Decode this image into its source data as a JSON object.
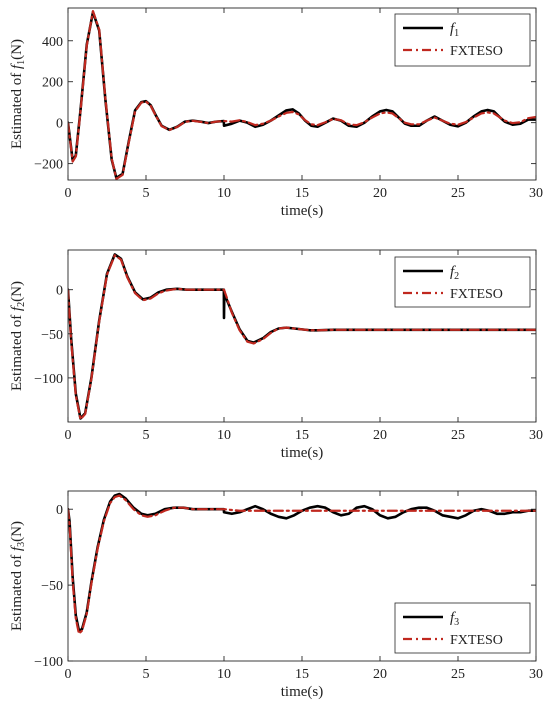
{
  "chart_data": [
    {
      "type": "line",
      "ylabel": "Estimated of f1(N)",
      "ylabel_main": "Estimated of ",
      "ylabel_var": "f",
      "ylabel_sub": "1",
      "ylabel_unit": "(N)",
      "xlabel": "time(s)",
      "xlim": [
        0,
        30
      ],
      "ylim": [
        -280,
        560
      ],
      "xticks": [
        0,
        5,
        10,
        15,
        20,
        25,
        30
      ],
      "yticks": [
        -200,
        0,
        200,
        400
      ],
      "grid": false,
      "legend_position": "top-right",
      "series": [
        {
          "name": "f1",
          "name_var": "f",
          "name_sub": "1",
          "color": "#000000",
          "style": "solid",
          "x": [
            0,
            0.3,
            0.5,
            0.8,
            1.2,
            1.6,
            2.0,
            2.4,
            2.8,
            3.1,
            3.5,
            3.9,
            4.3,
            4.7,
            5.0,
            5.3,
            5.6,
            6.0,
            6.5,
            7.0,
            7.5,
            8.0,
            8.5,
            9.0,
            9.5,
            9.99,
            10.0,
            10.5,
            11.0,
            11.5,
            12.0,
            12.5,
            13.0,
            13.5,
            14.0,
            14.4,
            14.8,
            15.2,
            15.6,
            16.0,
            16.5,
            17.0,
            17.5,
            18.0,
            18.5,
            19.0,
            19.5,
            20.0,
            20.4,
            20.8,
            21.2,
            21.6,
            22.0,
            22.5,
            23.0,
            23.5,
            24.0,
            24.5,
            25.0,
            25.5,
            26.0,
            26.5,
            26.9,
            27.3,
            27.7,
            28.0,
            28.5,
            29.0,
            29.5,
            30.0
          ],
          "y": [
            0,
            -185,
            -160,
            60,
            380,
            540,
            450,
            110,
            -180,
            -270,
            -250,
            -90,
            60,
            100,
            105,
            85,
            40,
            -15,
            -35,
            -20,
            5,
            10,
            5,
            -2,
            5,
            8,
            -15,
            -5,
            10,
            0,
            -20,
            -10,
            10,
            35,
            60,
            65,
            45,
            10,
            -15,
            -20,
            0,
            20,
            10,
            -15,
            -20,
            0,
            30,
            55,
            62,
            55,
            25,
            -5,
            -15,
            -15,
            10,
            30,
            10,
            -10,
            -18,
            0,
            30,
            55,
            62,
            55,
            25,
            5,
            -10,
            -5,
            15,
            15
          ]
        },
        {
          "name": "FXTESO",
          "color": "#c0281f",
          "style": "dashdot",
          "x": [
            0,
            0.3,
            0.5,
            0.8,
            1.2,
            1.6,
            2.0,
            2.4,
            2.8,
            3.1,
            3.5,
            3.9,
            4.3,
            4.7,
            5.0,
            5.3,
            5.6,
            6.0,
            6.5,
            7.0,
            7.5,
            8.0,
            8.5,
            9.0,
            9.5,
            10.0,
            10.5,
            11.0,
            11.5,
            12.0,
            12.5,
            13.0,
            13.5,
            14.0,
            14.4,
            14.8,
            15.2,
            15.6,
            16.0,
            16.5,
            17.0,
            17.5,
            18.0,
            18.5,
            19.0,
            19.5,
            20.0,
            20.4,
            20.8,
            21.2,
            21.6,
            22.0,
            22.5,
            23.0,
            23.5,
            24.0,
            24.5,
            25.0,
            25.5,
            26.0,
            26.5,
            26.9,
            27.3,
            27.7,
            28.0,
            28.5,
            29.0,
            29.5,
            30.0
          ],
          "y": [
            0,
            -190,
            -165,
            55,
            375,
            545,
            455,
            115,
            -175,
            -275,
            -255,
            -95,
            55,
            98,
            103,
            83,
            38,
            -17,
            -36,
            -21,
            4,
            9,
            4,
            -2,
            5,
            8,
            5,
            12,
            3,
            -12,
            -5,
            10,
            30,
            48,
            52,
            40,
            12,
            -8,
            -12,
            2,
            18,
            12,
            -8,
            -12,
            2,
            25,
            45,
            50,
            45,
            22,
            0,
            -8,
            -8,
            10,
            25,
            10,
            -5,
            -10,
            3,
            25,
            45,
            50,
            45,
            25,
            10,
            -2,
            2,
            22,
            28
          ]
        }
      ]
    },
    {
      "type": "line",
      "ylabel": "Estimated of f2(N)",
      "ylabel_main": "Estimated of ",
      "ylabel_var": "f",
      "ylabel_sub": "2",
      "ylabel_unit": "(N)",
      "xlabel": "time(s)",
      "xlim": [
        0,
        30
      ],
      "ylim": [
        -150,
        45
      ],
      "xticks": [
        0,
        5,
        10,
        15,
        20,
        25,
        30
      ],
      "yticks": [
        -100,
        -50,
        0
      ],
      "grid": false,
      "legend_position": "top-right",
      "series": [
        {
          "name": "f2",
          "name_var": "f",
          "name_sub": "2",
          "color": "#000000",
          "style": "solid",
          "x": [
            0,
            0.2,
            0.5,
            0.8,
            1.1,
            1.5,
            2.0,
            2.5,
            3.0,
            3.4,
            3.8,
            4.3,
            4.8,
            5.3,
            5.8,
            6.3,
            7.0,
            7.6,
            8.2,
            9.0,
            9.99,
            10.0,
            10.02,
            10.1,
            10.5,
            11.0,
            11.5,
            11.9,
            12.5,
            13.0,
            13.5,
            14.0,
            14.5,
            15.0,
            15.5,
            16.0,
            17.0,
            18.0,
            19.0,
            20.0,
            22.0,
            24.0,
            26.0,
            28.0,
            30.0
          ],
          "y": [
            0,
            -55,
            -118,
            -146,
            -140,
            -100,
            -35,
            18,
            40,
            35,
            15,
            -3,
            -11,
            -9,
            -3,
            0,
            1,
            0,
            0,
            0,
            0,
            -32,
            -2,
            -8,
            -25,
            -45,
            -58,
            -60,
            -55,
            -48,
            -44,
            -43,
            -44,
            -45,
            -46,
            -46,
            -45.5,
            -45.5,
            -45.5,
            -45.5,
            -45.5,
            -45.5,
            -45.5,
            -45.5,
            -45.5
          ]
        },
        {
          "name": "FXTESO",
          "color": "#c0281f",
          "style": "dashdot",
          "x": [
            0,
            0.2,
            0.5,
            0.8,
            1.1,
            1.5,
            2.0,
            2.5,
            3.0,
            3.4,
            3.8,
            4.3,
            4.8,
            5.3,
            5.8,
            6.3,
            7.0,
            7.6,
            8.2,
            9.0,
            10.0,
            10.2,
            10.5,
            11.0,
            11.5,
            11.9,
            12.5,
            13.0,
            13.5,
            14.0,
            14.5,
            15.0,
            15.5,
            16.0,
            17.0,
            18.0,
            19.0,
            20.0,
            22.0,
            24.0,
            26.0,
            28.0,
            30.0
          ],
          "y": [
            0,
            -58,
            -120,
            -147,
            -141,
            -101,
            -36,
            17,
            39,
            34,
            14,
            -4,
            -12,
            -10,
            -4,
            -1,
            1,
            0,
            0,
            0,
            0,
            -10,
            -26,
            -46,
            -59,
            -61,
            -56,
            -49,
            -44,
            -43,
            -44,
            -45,
            -46,
            -46,
            -45.5,
            -45.5,
            -45.5,
            -45.5,
            -45.5,
            -45.5,
            -45.5,
            -45.5,
            -45.5
          ]
        }
      ]
    },
    {
      "type": "line",
      "ylabel": "Estimated of f3(N)",
      "ylabel_main": "Estimated of ",
      "ylabel_var": "f",
      "ylabel_sub": "3",
      "ylabel_unit": "(N)",
      "xlabel": "time(s)",
      "xlim": [
        0,
        30
      ],
      "ylim": [
        -100,
        12
      ],
      "xticks": [
        0,
        5,
        10,
        15,
        20,
        25,
        30
      ],
      "yticks": [
        -100,
        -50,
        0
      ],
      "grid": false,
      "legend_position": "bottom-right",
      "series": [
        {
          "name": "f3",
          "name_var": "f",
          "name_sub": "3",
          "color": "#000000",
          "style": "solid",
          "x": [
            0,
            0.1,
            0.3,
            0.5,
            0.7,
            0.9,
            1.2,
            1.5,
            1.9,
            2.3,
            2.7,
            3.0,
            3.3,
            3.7,
            4.2,
            4.7,
            5.1,
            5.6,
            6.2,
            6.8,
            7.4,
            8.0,
            8.6,
            9.2,
            9.99,
            10.0,
            10.5,
            11.0,
            11.5,
            12.0,
            12.5,
            13.0,
            13.5,
            14.0,
            14.5,
            15.0,
            15.5,
            16.0,
            16.5,
            17.0,
            17.5,
            18.0,
            18.5,
            19.0,
            19.5,
            20.0,
            20.5,
            21.0,
            21.5,
            22.0,
            22.5,
            23.0,
            23.5,
            24.0,
            24.5,
            25.0,
            25.5,
            26.0,
            26.5,
            27.0,
            27.5,
            28.0,
            28.5,
            29.0,
            29.5,
            30.0
          ],
          "y": [
            0,
            -8,
            -45,
            -70,
            -80,
            -79,
            -68,
            -48,
            -25,
            -7,
            5,
            9,
            10,
            7,
            1,
            -3,
            -4,
            -3,
            0,
            1,
            1,
            0,
            0,
            0,
            0,
            -2,
            -3,
            -2,
            0,
            2,
            0,
            -3,
            -5,
            -6,
            -4,
            -1,
            1,
            2,
            1,
            -2,
            -4,
            -3,
            1,
            2,
            0,
            -4,
            -6,
            -5,
            -2,
            0,
            1,
            1,
            -1,
            -4,
            -5,
            -6,
            -4,
            -1,
            0,
            -1,
            -3,
            -3,
            -2,
            -2,
            -1,
            -1
          ]
        },
        {
          "name": "FXTESO",
          "color": "#c0281f",
          "style": "dashdot",
          "x": [
            0,
            0.1,
            0.3,
            0.5,
            0.7,
            0.9,
            1.2,
            1.5,
            1.9,
            2.3,
            2.7,
            3.0,
            3.3,
            3.7,
            4.2,
            4.7,
            5.1,
            5.6,
            6.2,
            6.8,
            7.4,
            8.0,
            8.6,
            9.2,
            10.0,
            11.0,
            12.0,
            13.0,
            14.0,
            15.0,
            16.0,
            17.0,
            18.0,
            19.0,
            20.0,
            21.0,
            22.0,
            23.0,
            24.0,
            25.0,
            26.0,
            27.0,
            28.0,
            29.0,
            30.0
          ],
          "y": [
            0,
            -10,
            -48,
            -72,
            -82,
            -80,
            -69,
            -49,
            -26,
            -8,
            4,
            8,
            9,
            6,
            0,
            -4,
            -5,
            -4,
            -1,
            1,
            1,
            0,
            0,
            0,
            0,
            -1,
            -1,
            -1,
            -1,
            -1,
            -1,
            -1,
            -1,
            -1,
            -1,
            -1,
            -1,
            -1,
            -1,
            -1,
            -1,
            -1,
            -1,
            -1,
            -1
          ]
        }
      ]
    }
  ]
}
